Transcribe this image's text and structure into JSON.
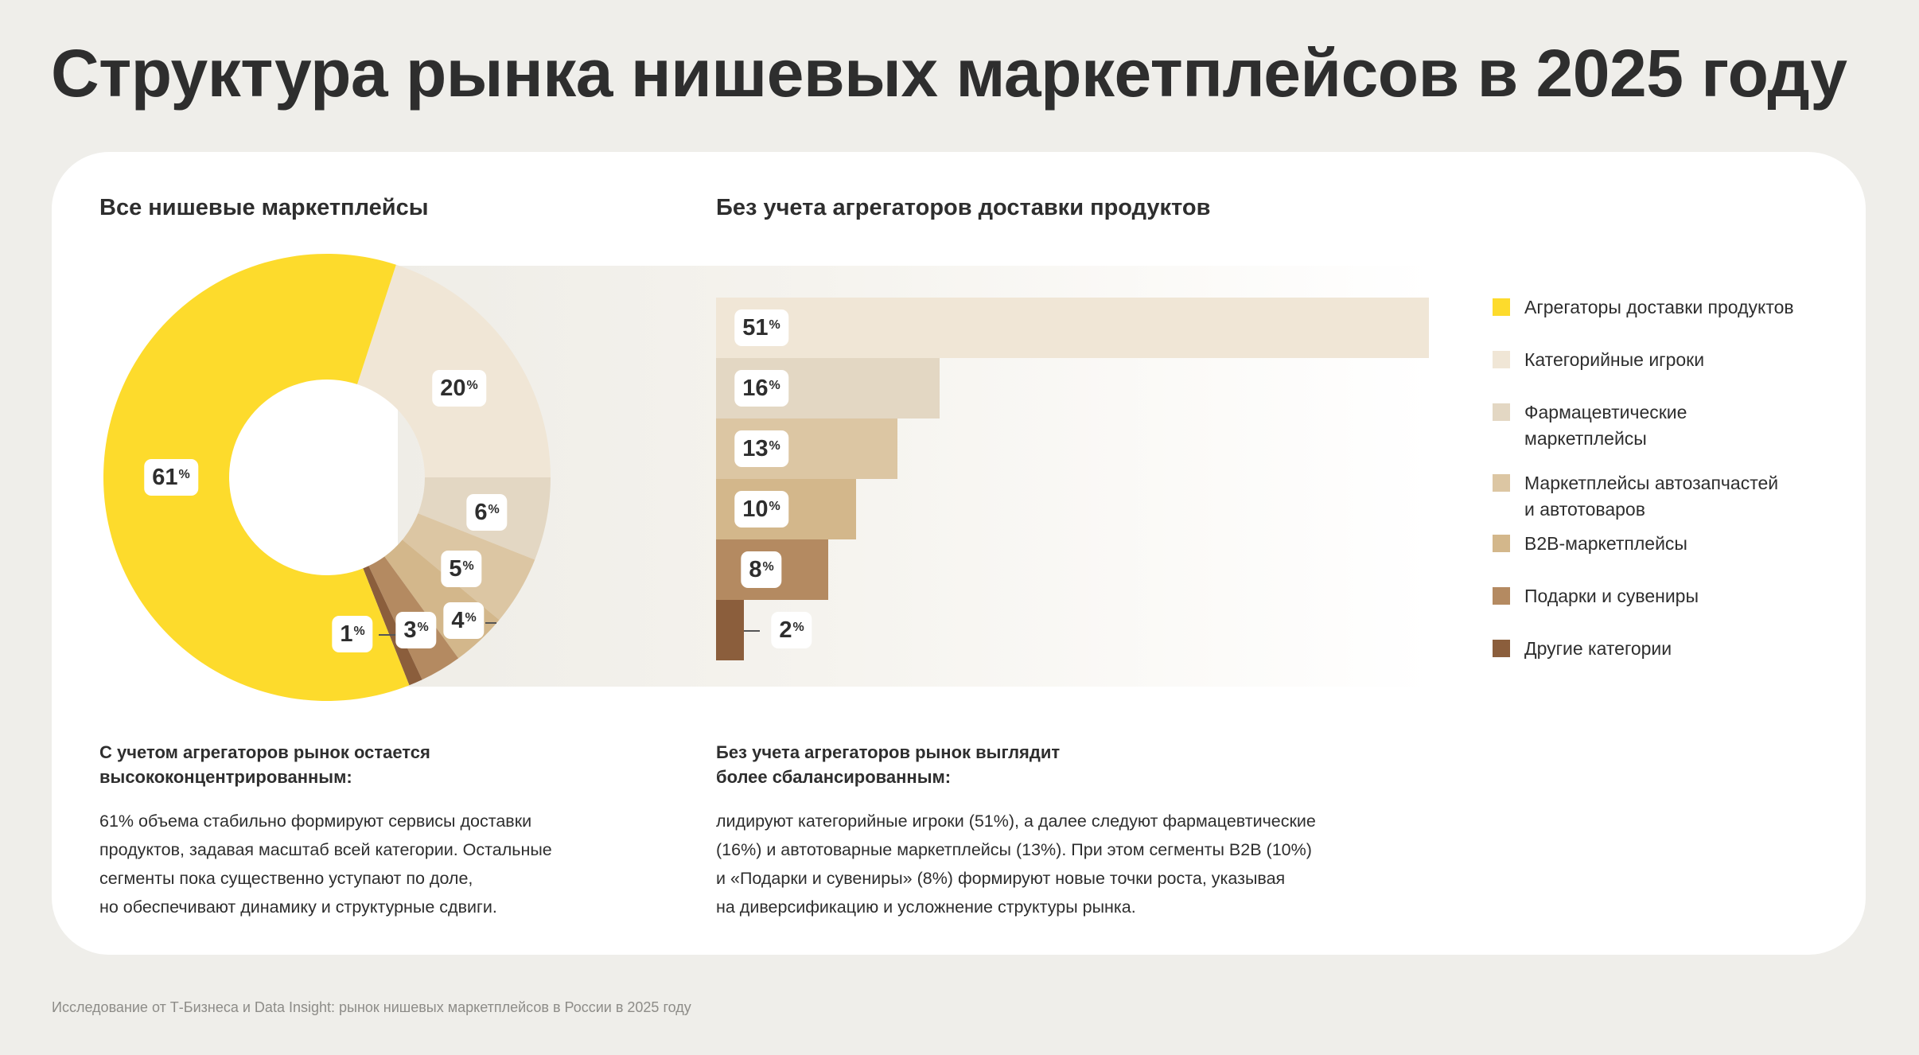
{
  "title": "Структура рынка нишевых маркетплейсов в 2025 году",
  "left_subtitle": "Все нишевые маркетплейсы",
  "right_subtitle": "Без учета агрегаторов доставки продуктов",
  "chart_data": [
    {
      "type": "pie",
      "subtitle": "Все нишевые маркетплейсы",
      "donut": true,
      "categories": [
        "Категорийные игроки",
        "Фармацевтические маркетплейсы",
        "Маркетплейсы автозапчастей и автотоваров",
        "B2B-маркетплейсы",
        "Подарки и сувениры",
        "Другие категории",
        "Агрегаторы доставки продуктов"
      ],
      "values": [
        20,
        6,
        5,
        4,
        3,
        1,
        61
      ],
      "labels": [
        "20",
        "6",
        "5",
        "4",
        "3",
        "1",
        "61"
      ],
      "unit": "%",
      "colors": [
        "#F0E6D6",
        "#E3D7C3",
        "#DCC6A3",
        "#D3B78B",
        "#B48A61",
        "#8B5E3C",
        "#FDDB2C"
      ]
    },
    {
      "type": "bar",
      "orientation": "horizontal",
      "subtitle": "Без учета агрегаторов доставки продуктов",
      "categories": [
        "Категорийные игроки",
        "Фармацевтические маркетплейсы",
        "Маркетплейсы автозапчастей и автотоваров",
        "B2B-маркетплейсы",
        "Подарки и сувениры",
        "Другие категории"
      ],
      "values": [
        51,
        16,
        13,
        10,
        8,
        2
      ],
      "labels": [
        "51",
        "16",
        "13",
        "10",
        "8",
        "2"
      ],
      "unit": "%",
      "colors": [
        "#F0E6D6",
        "#E3D7C3",
        "#DCC6A3",
        "#D3B78B",
        "#B48A61",
        "#8B5E3C"
      ]
    }
  ],
  "legend": [
    {
      "label": "Агрегаторы доставки продуктов",
      "color": "#FDDB2C"
    },
    {
      "label": "Категорийные игроки",
      "color": "#F0E6D6"
    },
    {
      "label": "Фармацевтические маркетплейсы",
      "color": "#E3D7C3"
    },
    {
      "label": "Маркетплейсы автозапчастей и автотоваров",
      "color": "#DCC6A3"
    },
    {
      "label": "B2B-маркетплейсы",
      "color": "#D3B78B"
    },
    {
      "label": "Подарки и сувениры",
      "color": "#B48A61"
    },
    {
      "label": "Другие категории",
      "color": "#8B5E3C"
    }
  ],
  "notes": {
    "left": {
      "heading": "С учетом агрегаторов рынок остается\nвысококонцентрированным:",
      "body": "61% объема стабильно формируют сервисы доставки\nпродуктов, задавая масштаб всей категории. Остальные\nсегменты пока существенно уступают по доле,\nно обеспечивают динамику и структурные сдвиги."
    },
    "right": {
      "heading": "Без учета агрегаторов рынок выглядит\nболее сбалансированным:",
      "body": "лидируют категорийные игроки (51%), а далее следуют фармацевтические\n(16%) и автотоварные маркетплейсы (13%). При этом сегменты B2B (10%)\nи «Подарки и сувениры» (8%) формируют новые точки роста, указывая\nна диверсификацию и усложнение структуры рынка."
    }
  },
  "footer": "Исследование от Т-Бизнеса и Data Insight: рынок нишевых маркетплейсов в России в 2025 году"
}
